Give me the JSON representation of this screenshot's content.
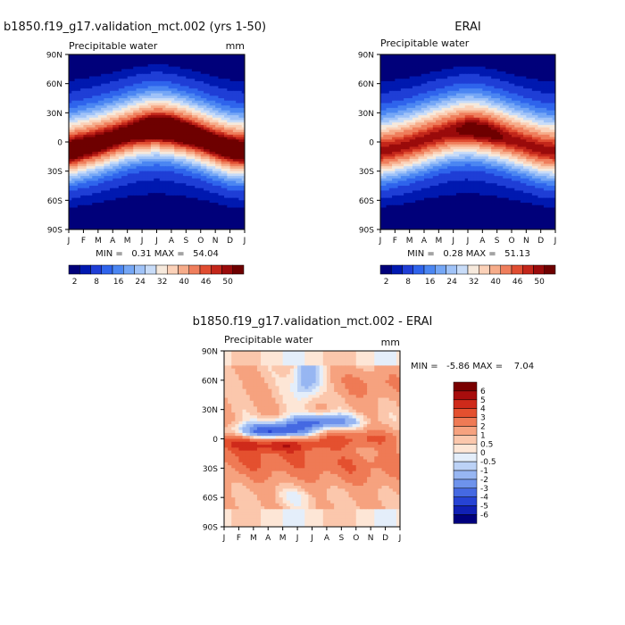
{
  "chart_data": [
    {
      "type": "heatmap",
      "title": "b1850.f19_g17.validation_mct.002 (yrs 1-50)",
      "subtitle": "Precipitable water",
      "units": "mm",
      "x_ticks": [
        "J",
        "F",
        "M",
        "A",
        "M",
        "J",
        "J",
        "A",
        "S",
        "O",
        "N",
        "D",
        "J"
      ],
      "y_ticks": [
        "90N",
        "60N",
        "30N",
        "0",
        "30S",
        "60S",
        "90S"
      ],
      "y_range": [
        -90,
        90
      ],
      "stats_text": "MIN =   0.31 MAX =   54.04",
      "min": 0.31,
      "max": 54.04,
      "colorbar_labels": [
        "2",
        "8",
        "16",
        "24",
        "32",
        "40",
        "46",
        "50"
      ],
      "colorbar_levels": [
        2,
        4,
        8,
        12,
        16,
        20,
        24,
        28,
        32,
        36,
        40,
        44,
        46,
        48,
        50
      ],
      "colorbar_colors": [
        "#00007a",
        "#0019b0",
        "#1f3ed6",
        "#2f64ec",
        "#4b86f2",
        "#75a7f6",
        "#a0c3f8",
        "#c8dcf8",
        "#f6e9dc",
        "#fbd1b8",
        "#f6ac8a",
        "#ef7e5c",
        "#e04d31",
        "#c3261a",
        "#9a0b0b",
        "#6e0000"
      ],
      "ridge_lat": [
        -10,
        -6,
        -2,
        3,
        8,
        12,
        14,
        12,
        8,
        3,
        -3,
        -8,
        -10
      ],
      "peak_intensity": [
        0.96,
        0.95,
        0.94,
        0.93,
        0.93,
        0.97,
        1.0,
        1.0,
        0.98,
        0.96,
        0.95,
        0.96,
        0.96
      ]
    },
    {
      "type": "heatmap",
      "title": "ERAI",
      "subtitle": "Precipitable water",
      "units": "",
      "x_ticks": [
        "J",
        "F",
        "M",
        "A",
        "M",
        "J",
        "J",
        "A",
        "S",
        "O",
        "N",
        "D",
        "J"
      ],
      "y_ticks": [
        "90N",
        "60N",
        "30N",
        "0",
        "30S",
        "60S",
        "90S"
      ],
      "y_range": [
        -90,
        90
      ],
      "stats_text": "MIN =   0.28 MAX =   51.13",
      "min": 0.28,
      "max": 51.13,
      "colorbar_labels": [
        "2",
        "8",
        "16",
        "24",
        "32",
        "40",
        "46",
        "50"
      ],
      "colorbar_levels": [
        2,
        4,
        8,
        12,
        16,
        20,
        24,
        28,
        32,
        36,
        40,
        44,
        46,
        48,
        50
      ],
      "colorbar_colors": [
        "#00007a",
        "#0019b0",
        "#1f3ed6",
        "#2f64ec",
        "#4b86f2",
        "#75a7f6",
        "#a0c3f8",
        "#c8dcf8",
        "#f6e9dc",
        "#fbd1b8",
        "#f6ac8a",
        "#ef7e5c",
        "#e04d31",
        "#c3261a",
        "#9a0b0b",
        "#6e0000"
      ],
      "ridge_lat": [
        -10,
        -7,
        -3,
        2,
        7,
        11,
        13,
        11,
        7,
        2,
        -3,
        -8,
        -10
      ],
      "peak_intensity": [
        0.9,
        0.9,
        0.9,
        0.9,
        0.9,
        0.92,
        0.96,
        0.97,
        0.94,
        0.9,
        0.9,
        0.9,
        0.9
      ]
    },
    {
      "type": "heatmap",
      "title": "b1850.f19_g17.validation_mct.002 - ERAI",
      "subtitle": "Precipitable water",
      "units": "mm",
      "x_ticks": [
        "J",
        "F",
        "M",
        "A",
        "M",
        "J",
        "J",
        "A",
        "S",
        "O",
        "N",
        "D",
        "J"
      ],
      "y_ticks": [
        "90N",
        "60N",
        "30N",
        "0",
        "30S",
        "60S",
        "90S"
      ],
      "y_range": [
        -90,
        90
      ],
      "stats_text": "MIN =   -5.86 MAX =    7.04",
      "min": -5.86,
      "max": 7.04,
      "colorbar_labels": [
        "6",
        "5",
        "4",
        "3",
        "2",
        "1",
        "0.5",
        "0",
        "-0.5",
        "-1",
        "-2",
        "-3",
        "-4",
        "-5",
        "-6"
      ],
      "colorbar_colors": [
        "#7a0000",
        "#a80d0d",
        "#cf2a1a",
        "#e4502f",
        "#ef7a55",
        "#f6a27f",
        "#fbc7ac",
        "#fde6d6",
        "#e4eefa",
        "#bcd2f6",
        "#97b6f2",
        "#6e93ec",
        "#4569e2",
        "#2643d4",
        "#1020b4",
        "#00007d"
      ]
    }
  ]
}
